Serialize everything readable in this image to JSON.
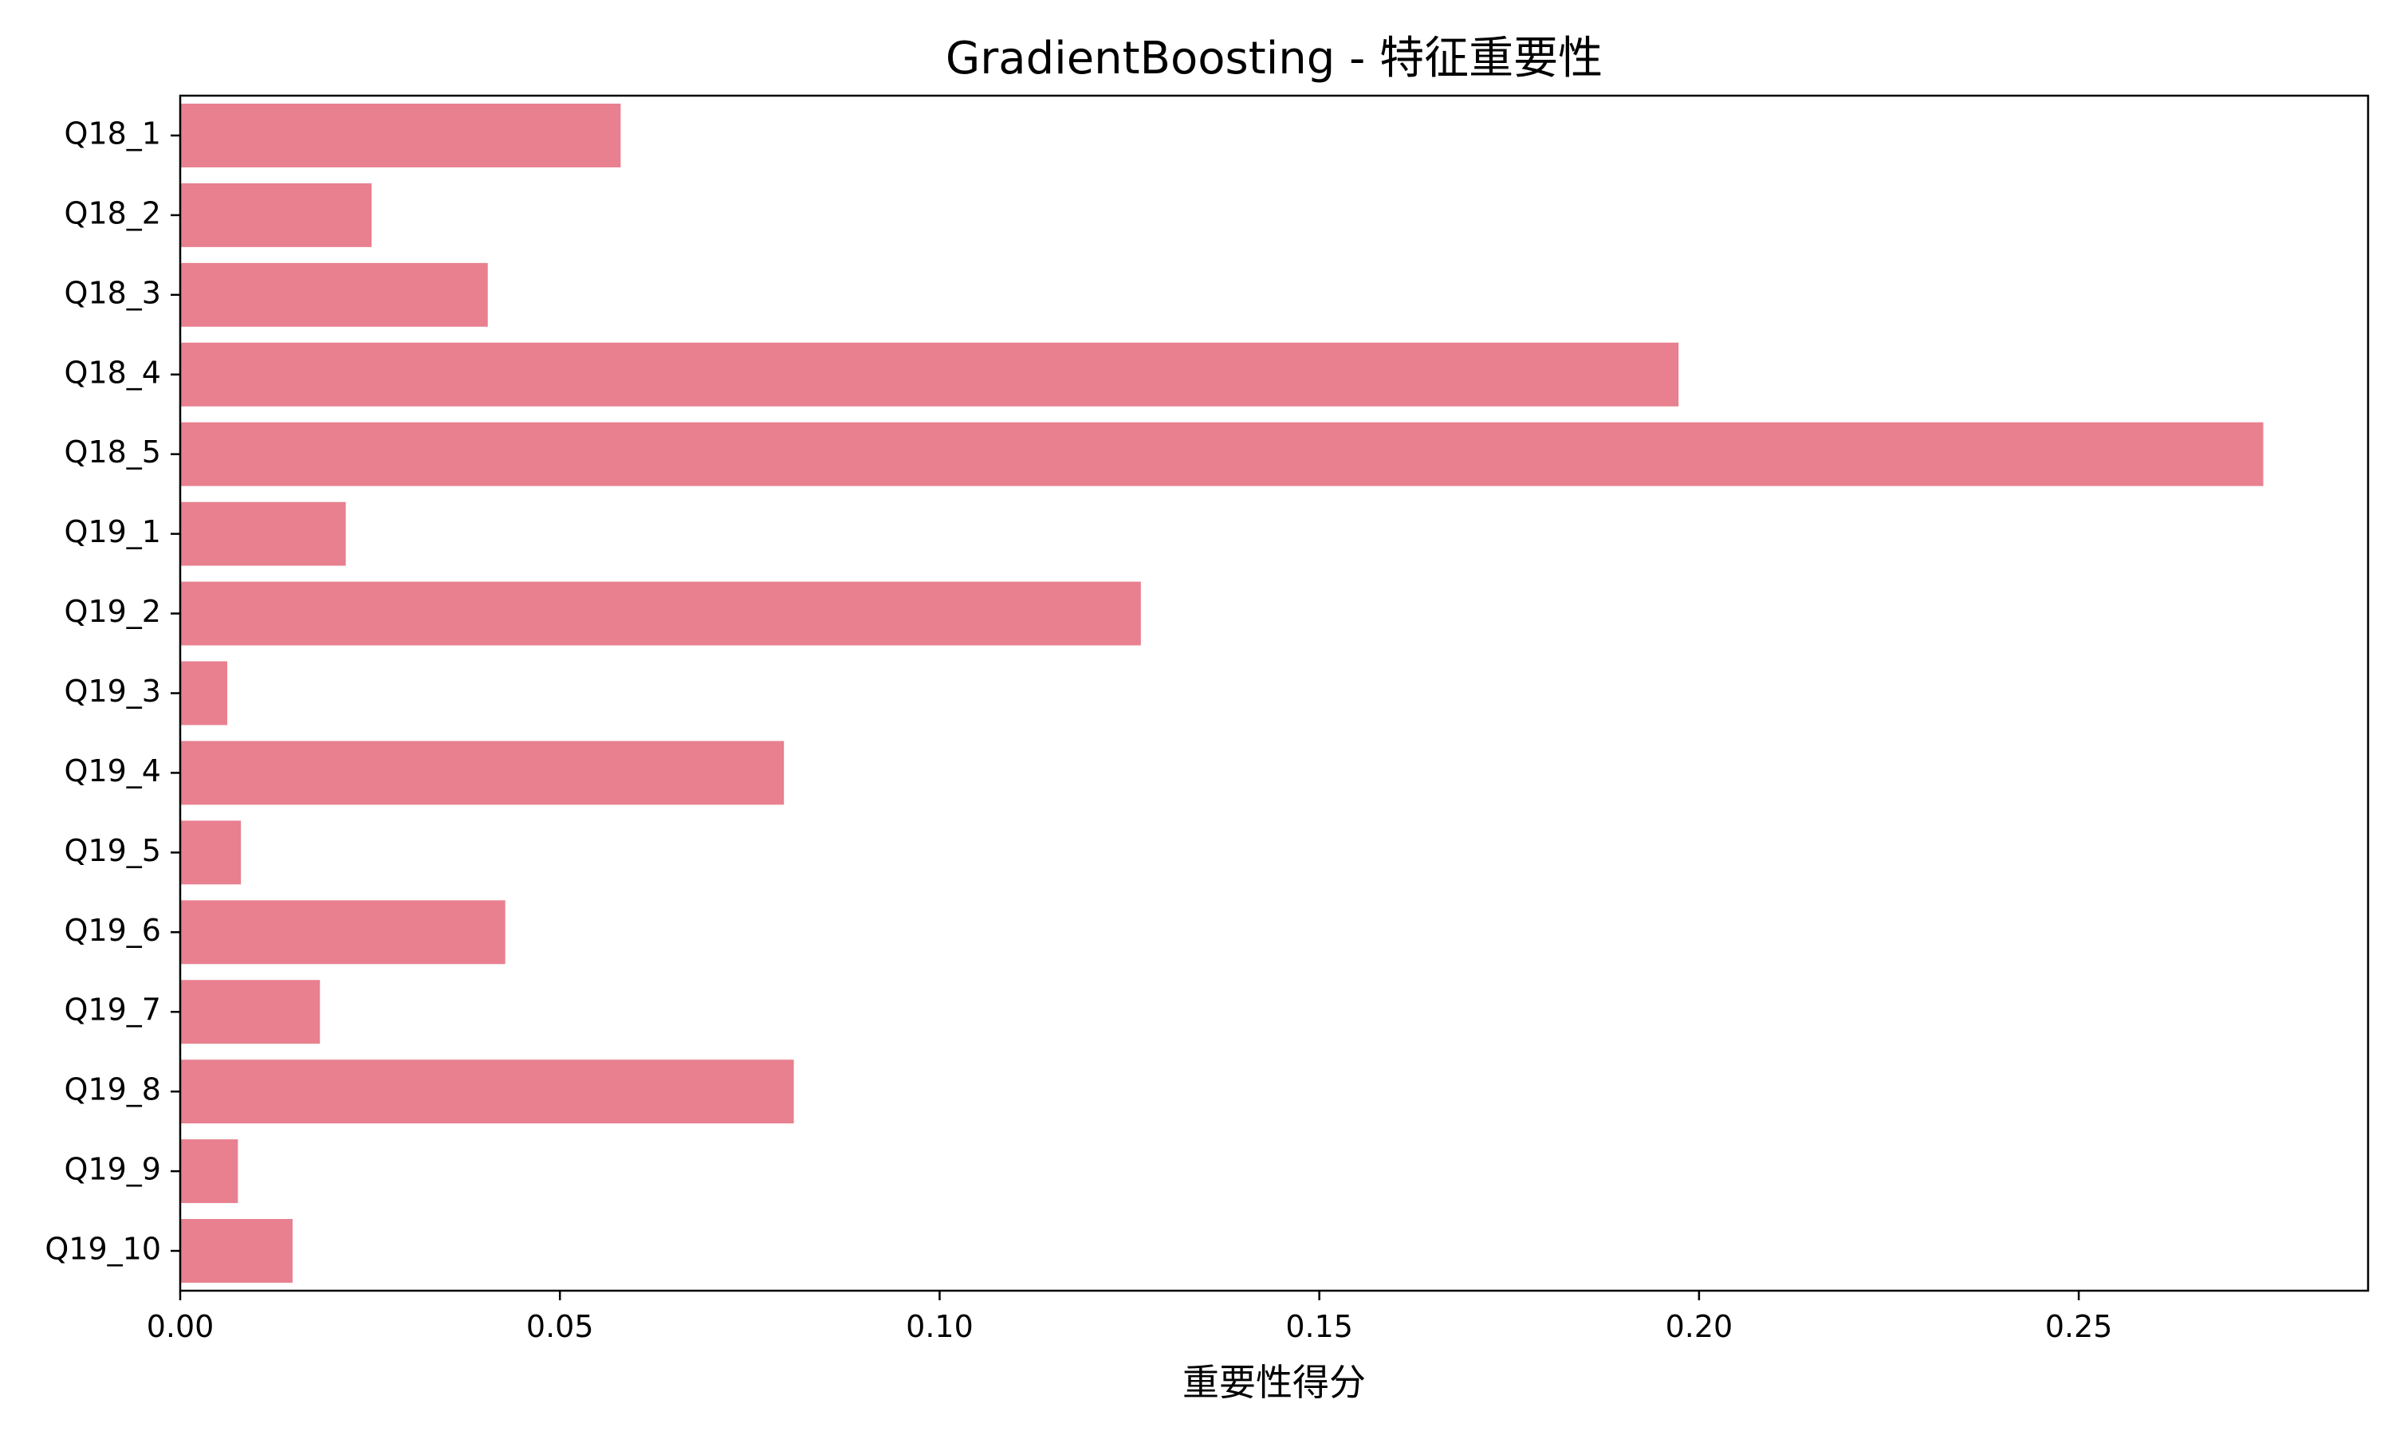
{
  "chart_data": {
    "type": "bar",
    "orientation": "horizontal",
    "title": "GradientBoosting - 特征重要性",
    "xlabel": "重要性得分",
    "ylabel": "",
    "categories": [
      "Q18_1",
      "Q18_2",
      "Q18_3",
      "Q18_4",
      "Q18_5",
      "Q19_1",
      "Q19_2",
      "Q19_3",
      "Q19_4",
      "Q19_5",
      "Q19_6",
      "Q19_7",
      "Q19_8",
      "Q19_9",
      "Q19_10"
    ],
    "values": [
      0.058,
      0.0252,
      0.0405,
      0.1973,
      0.2743,
      0.0218,
      0.1265,
      0.0062,
      0.0795,
      0.008,
      0.0428,
      0.0184,
      0.0808,
      0.0076,
      0.0148
    ],
    "xlim": [
      0,
      0.2881
    ],
    "xticks": [
      0.0,
      0.05,
      0.1,
      0.15,
      0.2,
      0.25
    ],
    "xtick_labels": [
      "0.00",
      "0.05",
      "0.10",
      "0.15",
      "0.20",
      "0.25"
    ],
    "bar_color": "#e8808f",
    "grid": false,
    "legend": "none"
  }
}
